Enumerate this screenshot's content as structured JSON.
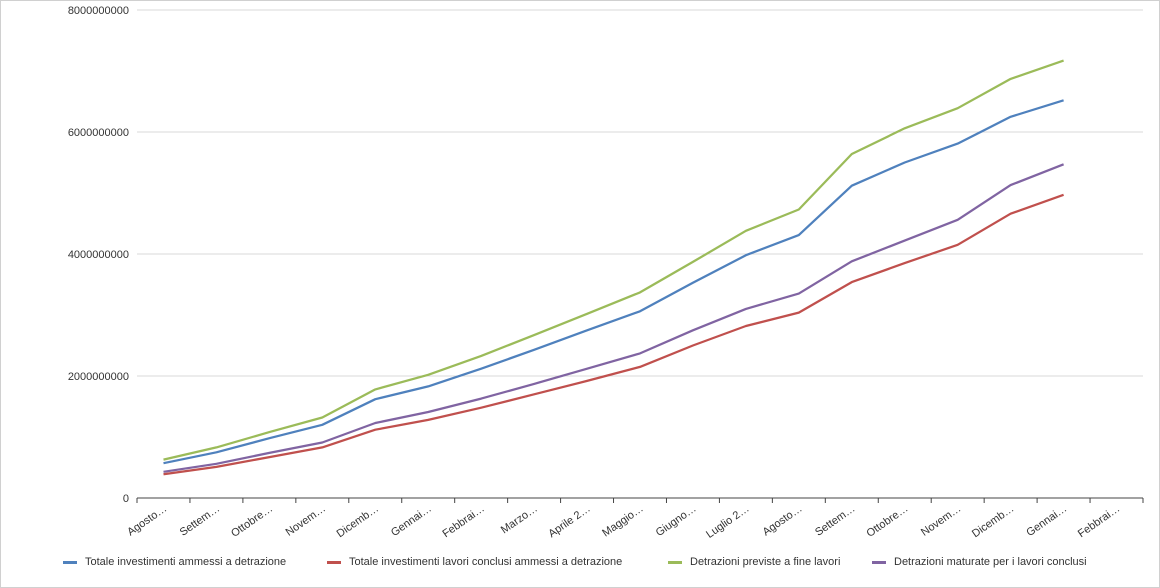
{
  "chart_data": {
    "type": "line",
    "categories": [
      "Agosto…",
      "Settem…",
      "Ottobre…",
      "Novem…",
      "Dicemb…",
      "Gennai…",
      "Febbrai…",
      "Marzo…",
      "Aprile 2…",
      "Maggio…",
      "Giugno…",
      "Luglio 2…",
      "Agosto…",
      "Settem…",
      "Ottobre…",
      "Novem…",
      "Dicemb…",
      "Gennai…",
      "Febbrai…"
    ],
    "ylim": [
      0,
      8000000000
    ],
    "yticks": [
      0,
      2000000000,
      4000000000,
      6000000000,
      8000000000
    ],
    "ytick_labels": [
      "0",
      "2000000000",
      "4000000000",
      "6000000000",
      "8000000000"
    ],
    "grid": true,
    "legend_position": "bottom",
    "series": [
      {
        "name": "Totale investimenti ammessi a detrazione",
        "color": "#4f81bd",
        "values": [
          570000000,
          750000000,
          980000000,
          1200000000,
          1620000000,
          1830000000,
          2120000000,
          2430000000,
          2750000000,
          3060000000,
          3530000000,
          3980000000,
          4310000000,
          5120000000,
          5500000000,
          5810000000,
          6250000000,
          6520000000,
          null
        ]
      },
      {
        "name": "Totale investimenti lavori conclusi ammessi a detrazione",
        "color": "#c0504d",
        "values": [
          390000000,
          510000000,
          670000000,
          830000000,
          1120000000,
          1280000000,
          1480000000,
          1700000000,
          1920000000,
          2150000000,
          2500000000,
          2820000000,
          3040000000,
          3540000000,
          3850000000,
          4150000000,
          4660000000,
          4970000000,
          null
        ]
      },
      {
        "name": "Detrazioni previste a fine lavori",
        "color": "#9bbb59",
        "values": [
          630000000,
          830000000,
          1080000000,
          1320000000,
          1780000000,
          2020000000,
          2330000000,
          2670000000,
          3020000000,
          3370000000,
          3870000000,
          4380000000,
          4730000000,
          5640000000,
          6060000000,
          6390000000,
          6870000000,
          7170000000,
          null
        ]
      },
      {
        "name": "Detrazioni maturate per i lavori conclusi",
        "color": "#8064a2",
        "values": [
          430000000,
          560000000,
          740000000,
          910000000,
          1230000000,
          1410000000,
          1630000000,
          1870000000,
          2120000000,
          2370000000,
          2750000000,
          3100000000,
          3350000000,
          3880000000,
          4220000000,
          4560000000,
          5130000000,
          5470000000,
          null
        ]
      }
    ]
  }
}
